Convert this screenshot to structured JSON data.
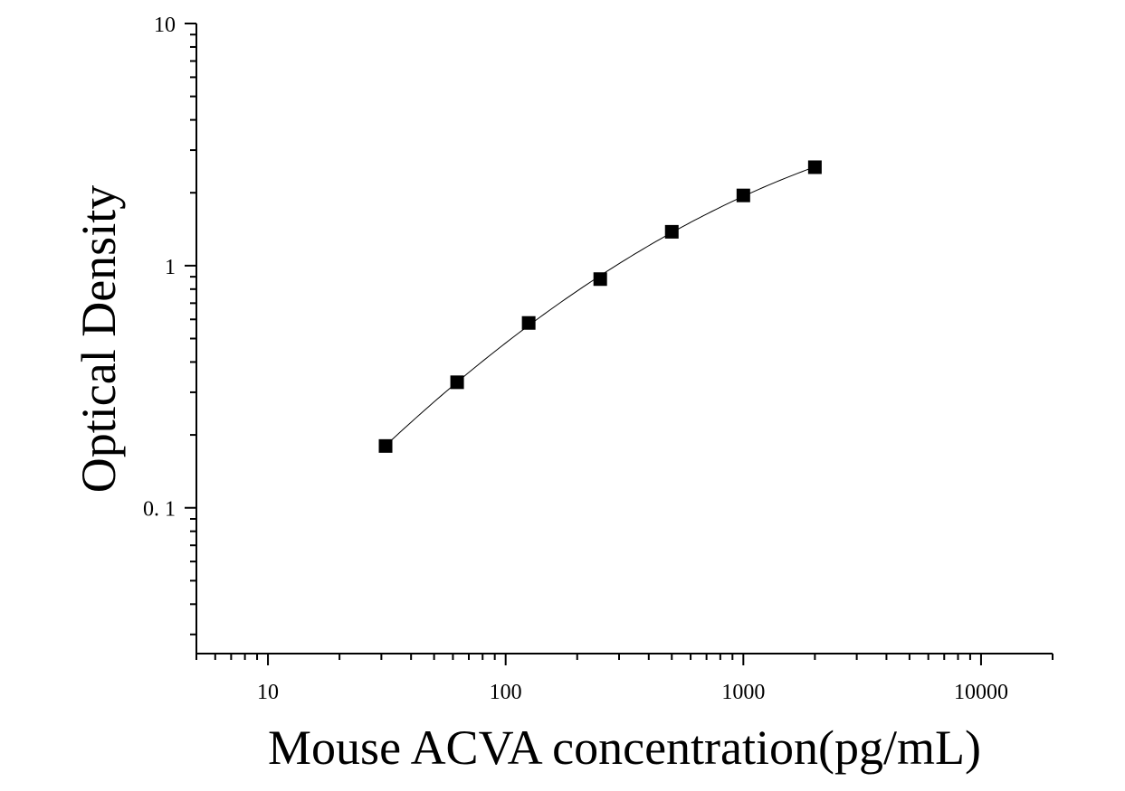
{
  "chart_data": {
    "type": "scatter",
    "title": "",
    "xlabel": "Mouse ACVA concentration(pg/mL)",
    "ylabel": "Optical Density",
    "x_scale": "log",
    "y_scale": "log",
    "xlim": [
      5,
      20000
    ],
    "ylim": [
      0.025,
      10
    ],
    "x_ticks": [
      {
        "value": 10,
        "label": "10"
      },
      {
        "value": 100,
        "label": "100"
      },
      {
        "value": 1000,
        "label": "1000"
      },
      {
        "value": 10000,
        "label": "10000"
      }
    ],
    "y_ticks": [
      {
        "value": 0.1,
        "label": "0. 1"
      },
      {
        "value": 1,
        "label": "1"
      },
      {
        "value": 10,
        "label": "10"
      }
    ],
    "grid": false,
    "series": [
      {
        "marker": "square",
        "color": "#000000",
        "x": [
          31.25,
          62.5,
          125,
          250,
          500,
          1000,
          2000
        ],
        "y": [
          0.18,
          0.33,
          0.58,
          0.88,
          1.38,
          1.95,
          2.55
        ]
      }
    ],
    "fit_curve": true
  }
}
